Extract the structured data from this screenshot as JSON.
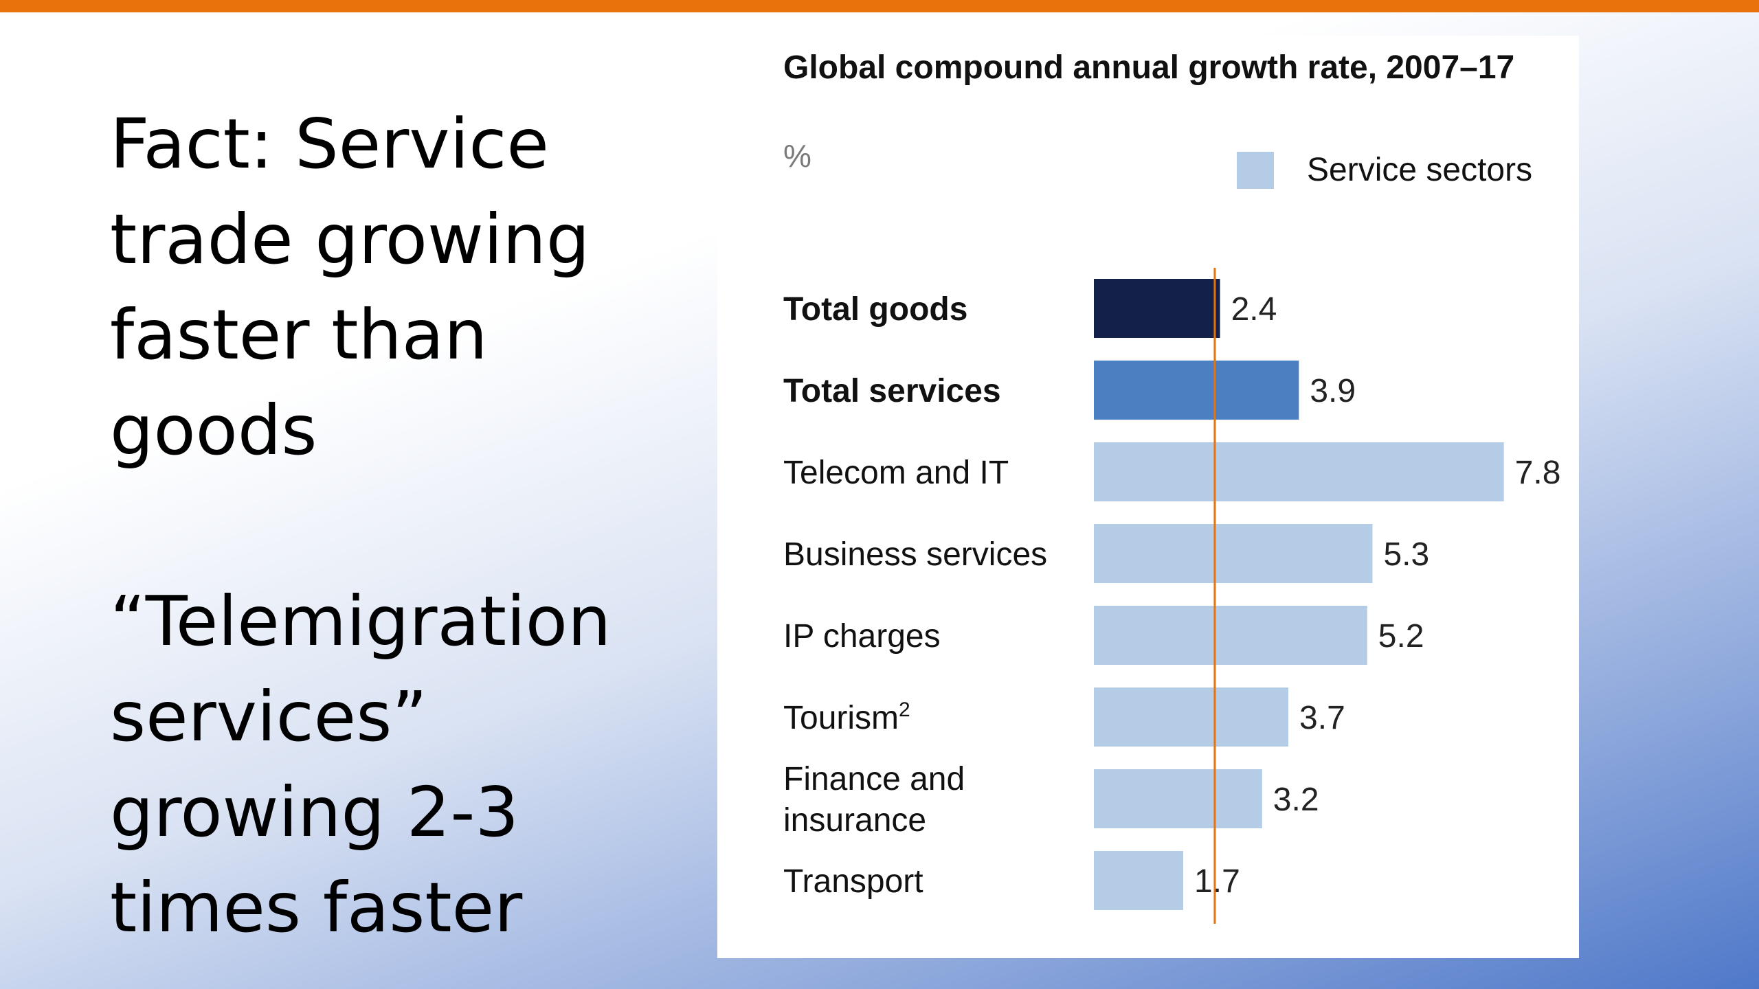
{
  "slide": {
    "text_lines": [
      "Fact: Service",
      "trade growing",
      "faster than",
      "goods"
    ],
    "quote_lines": [
      "“Telemigration",
      "services”",
      "growing 2-3",
      "times faster"
    ]
  },
  "colors": {
    "top_bar": "#e8720c",
    "total_goods": "#13204a",
    "total_services": "#4a7fc1",
    "service_sectors": "#b4cce6",
    "reference_line": "#e8720c"
  },
  "chart_data": {
    "type": "bar",
    "orientation": "horizontal",
    "title": "Global compound annual growth rate, 2007–17",
    "unit": "%",
    "legend": {
      "label": "Service sectors",
      "placement": "top-right"
    },
    "categories": [
      "Total goods",
      "Total services",
      "Telecom and IT",
      "Business services",
      "IP charges",
      "Tourism",
      "Finance and insurance",
      "Transport"
    ],
    "category_lines": [
      [
        "Total goods"
      ],
      [
        "Total services"
      ],
      [
        "Telecom and IT"
      ],
      [
        "Business services"
      ],
      [
        "IP charges"
      ],
      [
        "Tourism"
      ],
      [
        "Finance and",
        "insurance"
      ],
      [
        "Transport"
      ]
    ],
    "superscripts": [
      "",
      "",
      "",
      "",
      "",
      "2",
      "",
      ""
    ],
    "bold": [
      true,
      true,
      false,
      false,
      false,
      false,
      false,
      false
    ],
    "groups": [
      "goods",
      "services",
      "sector",
      "sector",
      "sector",
      "sector",
      "sector",
      "sector"
    ],
    "values": [
      2.4,
      3.9,
      7.8,
      5.3,
      5.2,
      3.7,
      3.2,
      1.7
    ],
    "value_labels": [
      "2.4",
      "3.9",
      "7.8",
      "5.3",
      "5.2",
      "3.7",
      "3.2",
      "1.7"
    ],
    "reference_line": 2.3,
    "xlim": [
      0,
      7.8
    ],
    "grid": false
  }
}
